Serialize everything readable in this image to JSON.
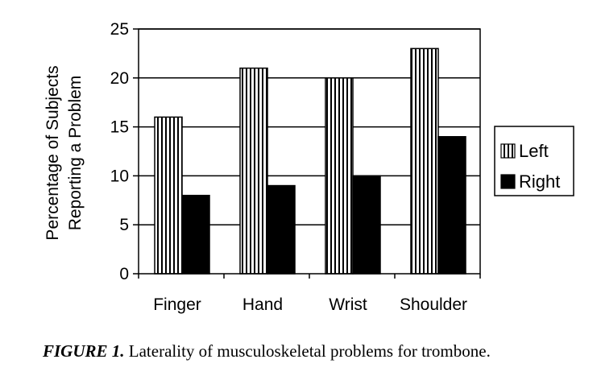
{
  "chart_data": {
    "type": "bar",
    "categories": [
      "Finger",
      "Hand",
      "Wrist",
      "Shoulder"
    ],
    "series": [
      {
        "name": "Left",
        "values": [
          16,
          21,
          20,
          23
        ],
        "pattern": "vertical-stripes"
      },
      {
        "name": "Right",
        "values": [
          8,
          9,
          10,
          14
        ],
        "pattern": "solid-black"
      }
    ],
    "ylabel_lines": [
      "Percentage of Subjects",
      "Reporting a Problem"
    ],
    "xlabel": "",
    "ylim": [
      0,
      25
    ],
    "yticks": [
      0,
      5,
      10,
      15,
      20,
      25
    ],
    "grid": true,
    "legend_position": "right"
  },
  "caption": {
    "label": "FIGURE 1.",
    "text": "Laterality of musculoskeletal problems for trombone."
  }
}
